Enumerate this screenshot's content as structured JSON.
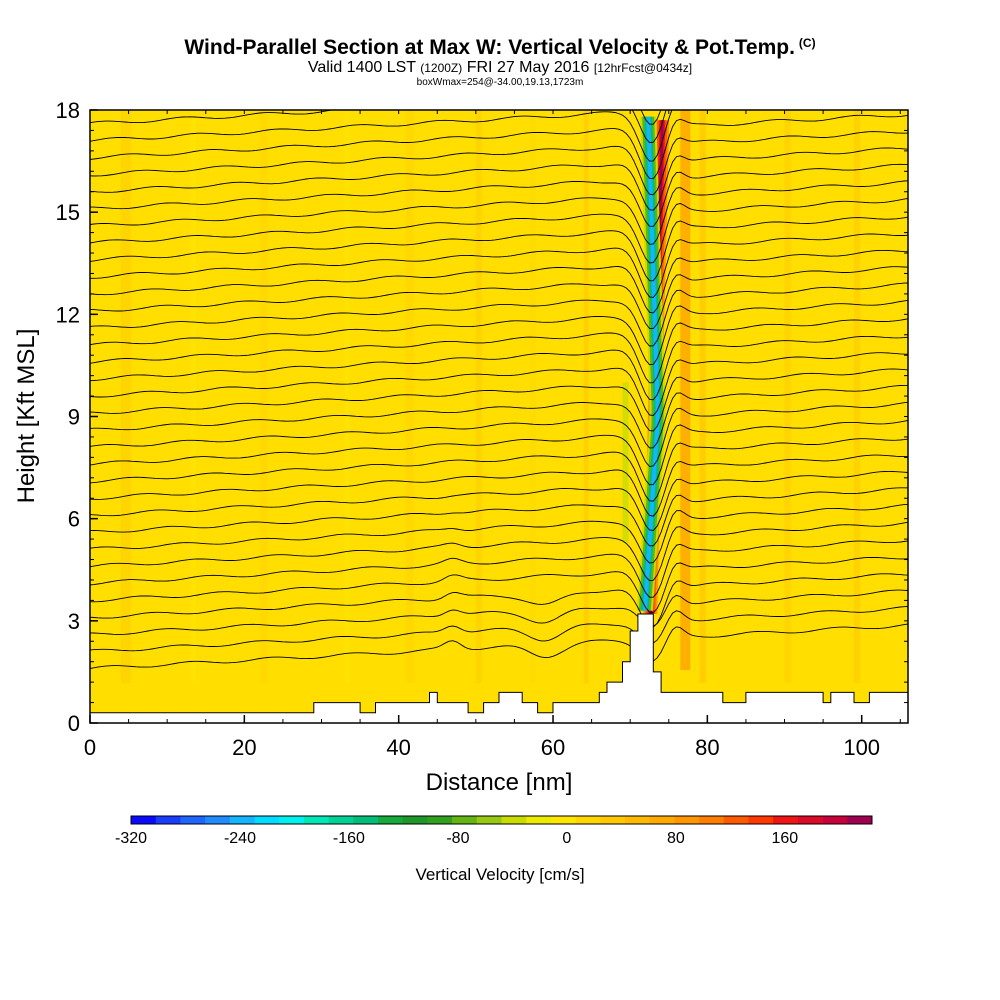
{
  "header": {
    "title": "Wind-Parallel Section at Max W: Vertical Velocity & Pot.Temp.",
    "title_mark": "(C)",
    "valid_prefix": "Valid 1400 LST",
    "valid_utc": "(1200Z)",
    "valid_date": "FRI 27 May 2016",
    "forecast": "[12hrFcst@0434z]",
    "box_info": "boxWmax=254@-34.00,19.13,1723m"
  },
  "chart_data": {
    "type": "cross-section contour",
    "title": "Wind-Parallel Section at Max W: Vertical Velocity & Pot.Temp.",
    "xlabel": "Distance [nm]",
    "ylabel": "Height [Kft MSL]",
    "xlim": [
      0,
      106
    ],
    "ylim": [
      0,
      18
    ],
    "xticks": [
      "0",
      "20",
      "40",
      "60",
      "80",
      "100"
    ],
    "yticks": [
      "0",
      "3",
      "6",
      "9",
      "12",
      "15",
      "18"
    ],
    "shaded_field": "Vertical Velocity [cm/s]",
    "contour_field": "Potential Temperature",
    "colorbar": {
      "label": "Vertical Velocity [cm/s]",
      "tick_labels": [
        "-320",
        "-240",
        "-160",
        "-80",
        "0",
        "80",
        "160"
      ],
      "tick_values": [
        -320,
        -240,
        -160,
        -80,
        0,
        80,
        160
      ],
      "min": -320,
      "max": 224,
      "step": 16,
      "colors": [
        "#0a0aff",
        "#1a3cff",
        "#1e64ff",
        "#1e8cff",
        "#14b4ff",
        "#00dcff",
        "#00f0f0",
        "#00e6b4",
        "#00d296",
        "#00be78",
        "#14aa3c",
        "#1e9628",
        "#32a01e",
        "#64b414",
        "#96c814",
        "#c8dc00",
        "#ebeb00",
        "#ffe600",
        "#ffd700",
        "#ffc800",
        "#ffb900",
        "#ffaa00",
        "#ff9600",
        "#ff7d00",
        "#ff5a00",
        "#ff3700",
        "#f01414",
        "#dc0a28",
        "#c8003c",
        "#a00050"
      ]
    },
    "terrain_kft": [
      [
        0,
        0.3
      ],
      [
        5,
        0.3
      ],
      [
        10,
        0.3
      ],
      [
        20,
        0.3
      ],
      [
        29,
        0.3
      ],
      [
        29,
        0.6
      ],
      [
        35,
        0.6
      ],
      [
        35,
        0.3
      ],
      [
        37,
        0.3
      ],
      [
        37,
        0.6
      ],
      [
        44,
        0.6
      ],
      [
        44,
        0.9
      ],
      [
        45,
        0.9
      ],
      [
        45,
        0.6
      ],
      [
        49,
        0.6
      ],
      [
        49,
        0.3
      ],
      [
        51,
        0.3
      ],
      [
        51,
        0.6
      ],
      [
        53,
        0.6
      ],
      [
        53,
        0.9
      ],
      [
        56,
        0.9
      ],
      [
        56,
        0.6
      ],
      [
        58,
        0.6
      ],
      [
        58,
        0.3
      ],
      [
        60,
        0.3
      ],
      [
        60,
        0.6
      ],
      [
        66,
        0.6
      ],
      [
        66,
        0.9
      ],
      [
        67,
        0.9
      ],
      [
        67,
        1.2
      ],
      [
        69,
        1.2
      ],
      [
        69,
        1.8
      ],
      [
        70,
        1.8
      ],
      [
        70,
        2.7
      ],
      [
        71,
        2.7
      ],
      [
        71,
        3.2
      ],
      [
        73,
        3.2
      ],
      [
        73,
        1.5
      ],
      [
        74,
        1.5
      ],
      [
        74,
        0.9
      ],
      [
        82,
        0.9
      ],
      [
        82,
        0.6
      ],
      [
        85,
        0.6
      ],
      [
        85,
        0.9
      ],
      [
        95,
        0.9
      ],
      [
        95,
        0.6
      ],
      [
        96,
        0.6
      ],
      [
        96,
        0.9
      ],
      [
        99,
        0.9
      ],
      [
        99,
        0.6
      ],
      [
        101,
        0.6
      ],
      [
        101,
        0.9
      ],
      [
        106,
        0.9
      ],
      [
        106,
        0
      ]
    ],
    "theta_contour_count": 34,
    "updraft_axis_kft": [
      [
        72.6,
        3.2
      ],
      [
        73.2,
        9
      ],
      [
        74.2,
        18
      ]
    ],
    "downdraft_axis_kft": [
      [
        71.9,
        3.3
      ],
      [
        73.6,
        9
      ],
      [
        72.3,
        18
      ]
    ]
  }
}
